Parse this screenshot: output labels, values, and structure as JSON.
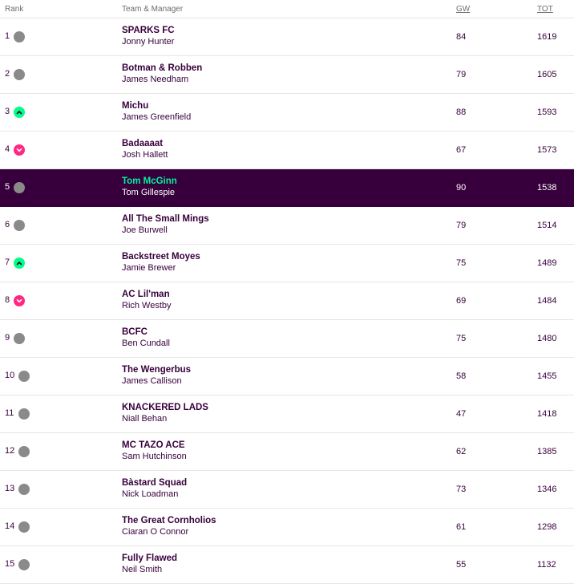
{
  "header": {
    "rank": "Rank",
    "team_manager": "Team & Manager",
    "gw": "GW",
    "tot": "TOT"
  },
  "colors": {
    "brand_purple": "#37003c",
    "up": "#00ff87",
    "down": "#ff2882",
    "same": "#8a8a8a",
    "highlight_team": "#05f0a0"
  },
  "rows": [
    {
      "rank": "1",
      "movement": "same",
      "team": "SPARKS FC",
      "manager": "Jonny Hunter",
      "gw": "84",
      "tot": "1619"
    },
    {
      "rank": "2",
      "movement": "same",
      "team": "Botman & Robben",
      "manager": "James Needham",
      "gw": "79",
      "tot": "1605"
    },
    {
      "rank": "3",
      "movement": "up",
      "team": "Michu",
      "manager": "James Greenfield",
      "gw": "88",
      "tot": "1593"
    },
    {
      "rank": "4",
      "movement": "down",
      "team": "Badaaaat",
      "manager": "Josh Hallett",
      "gw": "67",
      "tot": "1573"
    },
    {
      "rank": "5",
      "movement": "same",
      "team": "Tom McGinn",
      "manager": "Tom Gillespie",
      "gw": "90",
      "tot": "1538",
      "highlight": true
    },
    {
      "rank": "6",
      "movement": "same",
      "team": "All The Small Mings",
      "manager": "Joe Burwell",
      "gw": "79",
      "tot": "1514"
    },
    {
      "rank": "7",
      "movement": "up",
      "team": "Backstreet Moyes",
      "manager": "Jamie Brewer",
      "gw": "75",
      "tot": "1489"
    },
    {
      "rank": "8",
      "movement": "down",
      "team": "AC Lil'man",
      "manager": "Rich Westby",
      "gw": "69",
      "tot": "1484"
    },
    {
      "rank": "9",
      "movement": "same",
      "team": "BCFC",
      "manager": "Ben Cundall",
      "gw": "75",
      "tot": "1480"
    },
    {
      "rank": "10",
      "movement": "same",
      "team": "The Wengerbus",
      "manager": "James Callison",
      "gw": "58",
      "tot": "1455"
    },
    {
      "rank": "11",
      "movement": "same",
      "team": "KNACKERED LADS",
      "manager": "Niall Behan",
      "gw": "47",
      "tot": "1418"
    },
    {
      "rank": "12",
      "movement": "same",
      "team": "MC TAZO ACE",
      "manager": "Sam Hutchinson",
      "gw": "62",
      "tot": "1385"
    },
    {
      "rank": "13",
      "movement": "same",
      "team": "Bàstard Squad",
      "manager": "Nick Loadman",
      "gw": "73",
      "tot": "1346"
    },
    {
      "rank": "14",
      "movement": "same",
      "team": "The Great Cornholios",
      "manager": "Ciaran O Connor",
      "gw": "61",
      "tot": "1298"
    },
    {
      "rank": "15",
      "movement": "same",
      "team": "Fully Flawed",
      "manager": "Neil Smith",
      "gw": "55",
      "tot": "1132"
    }
  ]
}
